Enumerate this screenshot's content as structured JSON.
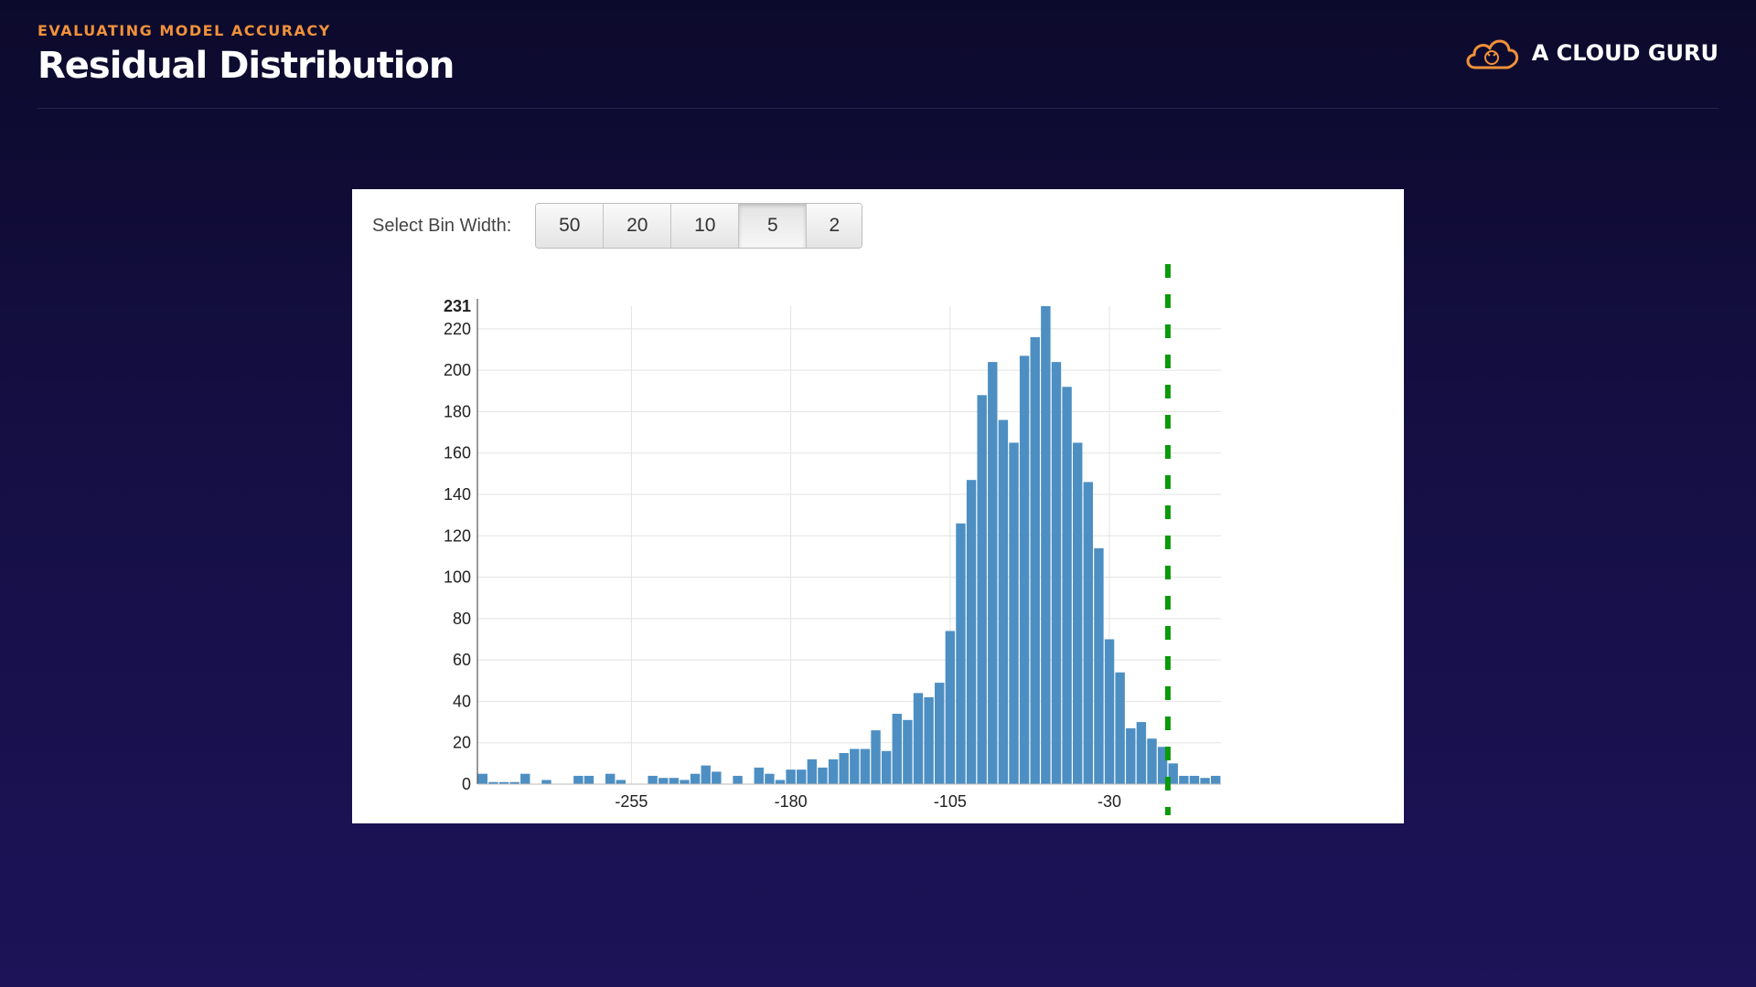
{
  "header": {
    "eyebrow": "EVALUATING MODEL ACCURACY",
    "title": "Residual Distribution"
  },
  "logo": {
    "text": "A CLOUD GURU",
    "icon": "cloud-icon",
    "color": "#f1913a"
  },
  "controls": {
    "label": "Select Bin Width:",
    "options": [
      "50",
      "20",
      "10",
      "5",
      "2"
    ],
    "selected": "5"
  },
  "chart_data": {
    "type": "bar",
    "bin_width": 5,
    "x_ticks": [
      -255,
      -180,
      -105,
      -30
    ],
    "y_ticks": [
      0,
      20,
      40,
      60,
      80,
      100,
      120,
      140,
      160,
      180,
      200,
      220
    ],
    "y_max_label": 231,
    "ylim": [
      0,
      231
    ],
    "xlim": [
      -327.5,
      22.5
    ],
    "grid": true,
    "bar_color": "#4d8fc3",
    "bins_start": [
      -327.5,
      -322.5,
      -317.5,
      -312.5,
      -307.5,
      -302.5,
      -297.5,
      -292.5,
      -287.5,
      -282.5,
      -277.5,
      -272.5,
      -267.5,
      -262.5,
      -257.5,
      -252.5,
      -247.5,
      -242.5,
      -237.5,
      -232.5,
      -227.5,
      -222.5,
      -217.5,
      -212.5,
      -207.5,
      -202.5,
      -197.5,
      -192.5,
      -187.5,
      -182.5,
      -177.5,
      -172.5,
      -167.5,
      -162.5,
      -157.5,
      -152.5,
      -147.5,
      -142.5,
      -137.5,
      -132.5,
      -127.5,
      -122.5,
      -117.5,
      -112.5,
      -107.5,
      -102.5,
      -97.5,
      -92.5,
      -87.5,
      -82.5,
      -77.5,
      -72.5,
      -67.5,
      -62.5,
      -57.5,
      -52.5,
      -47.5,
      -42.5,
      -37.5,
      -32.5,
      -27.5,
      -22.5,
      -17.5,
      -12.5,
      -7.5,
      -2.5,
      2.5,
      7.5,
      12.5,
      17.5
    ],
    "counts": [
      5,
      1,
      1,
      1,
      5,
      0,
      2,
      0,
      0,
      4,
      4,
      0,
      5,
      2,
      0,
      0,
      4,
      3,
      3,
      2,
      5,
      9,
      6,
      0,
      4,
      0,
      8,
      5,
      2,
      7,
      7,
      12,
      8,
      12,
      15,
      17,
      17,
      26,
      16,
      34,
      31,
      44,
      42,
      49,
      74,
      126,
      147,
      188,
      204,
      176,
      165,
      207,
      216,
      231,
      204,
      192,
      165,
      146,
      114,
      70,
      54,
      27,
      30,
      22,
      18,
      10,
      4,
      4,
      3,
      4
    ],
    "reference_line": {
      "x": -2.5,
      "color": "#0a9a0a",
      "style": "dashed"
    }
  }
}
